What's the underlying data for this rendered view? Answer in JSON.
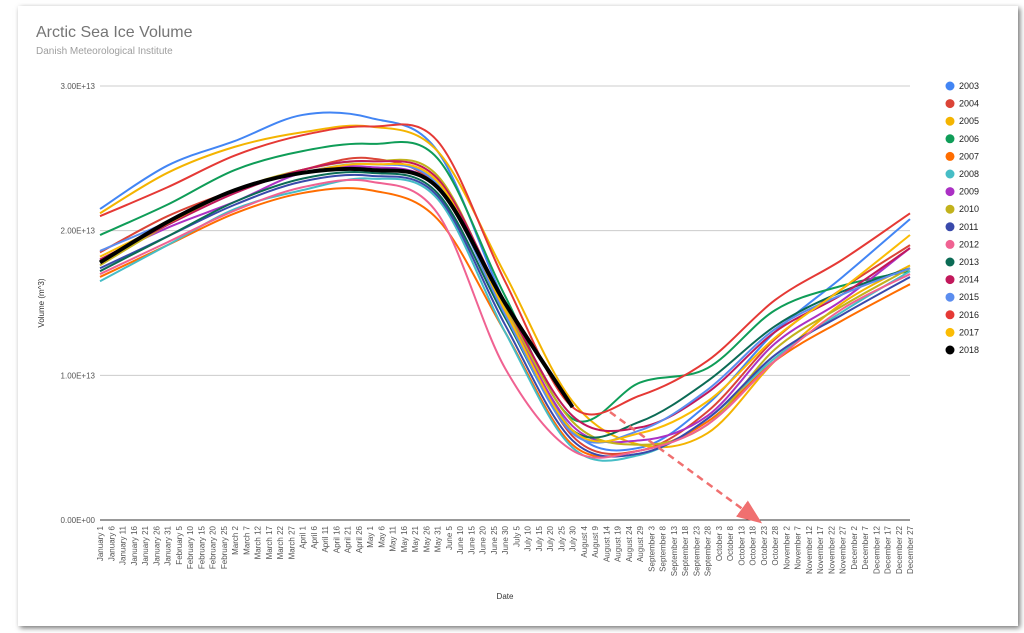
{
  "chart_data": {
    "type": "line",
    "title": "Arctic Sea Ice Volume",
    "subtitle": "Danish Meteorological Institute",
    "xlabel": "Date",
    "ylabel": "Volume (m^3)",
    "ylim": [
      0,
      30000000000000
    ],
    "y_ticks": [
      "0.00E+00",
      "1.00E+13",
      "2.00E+13",
      "3.00E+13"
    ],
    "y_tick_values": [
      0,
      10000000000000,
      20000000000000,
      30000000000000
    ],
    "x_ticks": [
      "January 1",
      "January 6",
      "January 11",
      "January 16",
      "January 21",
      "January 26",
      "January 31",
      "February 5",
      "February 10",
      "February 15",
      "February 20",
      "February 25",
      "March 2",
      "March 7",
      "March 12",
      "March 17",
      "March 22",
      "March 27",
      "April 1",
      "April 6",
      "April 11",
      "April 16",
      "April 21",
      "April 26",
      "May 1",
      "May 6",
      "May 11",
      "May 16",
      "May 21",
      "May 26",
      "May 31",
      "June 5",
      "June 10",
      "June 15",
      "June 20",
      "June 25",
      "June 30",
      "July 5",
      "July 10",
      "July 15",
      "July 20",
      "July 25",
      "July 30",
      "August 4",
      "August 9",
      "August 14",
      "August 19",
      "August 24",
      "August 29",
      "September 3",
      "September 8",
      "September 13",
      "September 18",
      "September 23",
      "September 28",
      "October 3",
      "October 8",
      "October 13",
      "October 18",
      "October 23",
      "October 28",
      "November 2",
      "November 7",
      "November 12",
      "November 17",
      "November 22",
      "November 27",
      "December 2",
      "December 7",
      "December 12",
      "December 17",
      "December 22",
      "December 27"
    ],
    "grid": true,
    "legend_position": "right",
    "annotation": "dashed red arrow pointing down-right from the 2018 curve",
    "series": [
      {
        "name": "2003",
        "color": "#4285f4",
        "values": [
          2.15,
          2.45,
          2.62,
          2.8,
          2.78,
          2.55,
          1.5,
          0.62,
          0.5,
          0.8,
          1.3,
          1.68,
          2.08
        ]
      },
      {
        "name": "2004",
        "color": "#db4437",
        "values": [
          1.85,
          2.1,
          2.28,
          2.42,
          2.5,
          2.3,
          1.45,
          0.58,
          0.48,
          0.75,
          1.25,
          1.6,
          1.9
        ]
      },
      {
        "name": "2005",
        "color": "#f4b400",
        "values": [
          2.12,
          2.4,
          2.58,
          2.68,
          2.72,
          2.55,
          1.7,
          0.82,
          0.52,
          0.6,
          1.1,
          1.5,
          1.76
        ]
      },
      {
        "name": "2006",
        "color": "#0f9d58",
        "values": [
          1.97,
          2.18,
          2.42,
          2.55,
          2.6,
          2.5,
          1.55,
          0.7,
          0.95,
          1.05,
          1.45,
          1.62,
          1.72
        ]
      },
      {
        "name": "2007",
        "color": "#ff6d00",
        "values": [
          1.68,
          1.9,
          2.12,
          2.26,
          2.28,
          2.08,
          1.3,
          0.52,
          0.48,
          0.68,
          1.1,
          1.38,
          1.63
        ]
      },
      {
        "name": "2008",
        "color": "#46bdc6",
        "values": [
          1.65,
          1.9,
          2.15,
          2.28,
          2.36,
          2.22,
          1.3,
          0.5,
          0.45,
          0.7,
          1.12,
          1.44,
          1.72
        ]
      },
      {
        "name": "2009",
        "color": "#ab30c4",
        "values": [
          1.8,
          2.02,
          2.2,
          2.4,
          2.44,
          2.3,
          1.45,
          0.65,
          0.55,
          0.72,
          1.22,
          1.52,
          1.88
        ]
      },
      {
        "name": "2010",
        "color": "#c2b21c",
        "values": [
          1.76,
          2.04,
          2.28,
          2.42,
          2.48,
          2.38,
          1.48,
          0.68,
          0.52,
          0.66,
          1.18,
          1.48,
          1.74
        ]
      },
      {
        "name": "2011",
        "color": "#3949ab",
        "values": [
          1.74,
          1.96,
          2.18,
          2.34,
          2.38,
          2.24,
          1.35,
          0.55,
          0.46,
          0.7,
          1.14,
          1.42,
          1.68
        ]
      },
      {
        "name": "2012",
        "color": "#f06292",
        "values": [
          1.7,
          1.92,
          2.14,
          2.3,
          2.34,
          2.12,
          1.05,
          0.48,
          0.48,
          0.66,
          1.1,
          1.46,
          1.7
        ]
      },
      {
        "name": "2013",
        "color": "#0b6b55",
        "values": [
          1.72,
          1.96,
          2.2,
          2.36,
          2.4,
          2.26,
          1.4,
          0.62,
          0.68,
          0.96,
          1.34,
          1.58,
          1.74
        ]
      },
      {
        "name": "2014",
        "color": "#c2185b",
        "values": [
          1.8,
          2.04,
          2.26,
          2.42,
          2.48,
          2.36,
          1.5,
          0.72,
          0.64,
          0.88,
          1.3,
          1.56,
          1.88
        ]
      },
      {
        "name": "2015",
        "color": "#5b8def",
        "values": [
          1.86,
          2.06,
          2.28,
          2.4,
          2.46,
          2.32,
          1.42,
          0.6,
          0.62,
          0.9,
          1.32,
          1.56,
          1.74
        ]
      },
      {
        "name": "2016",
        "color": "#e53935",
        "values": [
          2.1,
          2.3,
          2.52,
          2.66,
          2.72,
          2.62,
          1.65,
          0.78,
          0.86,
          1.1,
          1.52,
          1.8,
          2.12
        ]
      },
      {
        "name": "2017",
        "color": "#fbbc04",
        "values": [
          1.82,
          2.05,
          2.28,
          2.4,
          2.46,
          2.34,
          1.45,
          0.62,
          0.6,
          0.82,
          1.26,
          1.6,
          1.97
        ]
      },
      {
        "name": "2018",
        "color": "#000000",
        "values": [
          1.78,
          2.06,
          2.28,
          2.4,
          2.42,
          2.3,
          1.5,
          0.78
        ]
      }
    ]
  }
}
